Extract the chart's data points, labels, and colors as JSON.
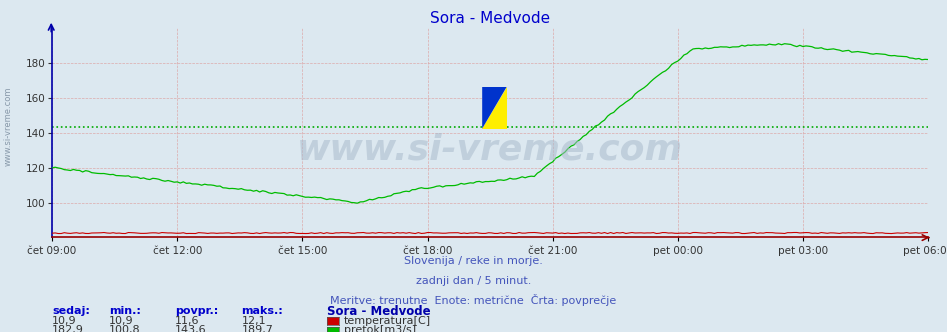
{
  "title": "Sora - Medvode",
  "title_color": "#0000cc",
  "bg_color": "#dce8f0",
  "plot_bg_color": "#dce8f0",
  "x_labels": [
    "čet 09:00",
    "čet 12:00",
    "čet 15:00",
    "čet 18:00",
    "čet 21:00",
    "pet 00:00",
    "pet 03:00",
    "pet 06:00"
  ],
  "y_min": 80,
  "y_max": 200,
  "y_ticks": [
    100,
    120,
    140,
    160,
    180
  ],
  "flow_color": "#00bb00",
  "temp_color": "#cc0000",
  "avg_line_color": "#00aa00",
  "avg_line_value": 143.6,
  "watermark": "www.si-vreme.com",
  "sub_text1": "Slovenija / reke in morje.",
  "sub_text2": "zadnji dan / 5 minut.",
  "sub_text3": "Meritve: trenutne  Enote: metrične  Črta: povprečje",
  "sub_text_color": "#4455bb",
  "legend_title": "Sora - Medvode",
  "legend_color": "#0000aa",
  "table_headers": [
    "sedaj:",
    "min.:",
    "povpr.:",
    "maks.:"
  ],
  "table_color": "#0000cc",
  "temp_row": [
    "10,9",
    "10,9",
    "11,6",
    "12,1"
  ],
  "flow_row": [
    "182,9",
    "100,8",
    "143,6",
    "189,7"
  ],
  "left_label": "www.si-vreme.com",
  "left_label_color": "#8899aa",
  "n_points": 288,
  "spine_left_color": "#0000aa",
  "spine_bottom_color": "#990000",
  "grid_v_color": "#ddaaaa",
  "grid_h_color": "#ddaaaa"
}
